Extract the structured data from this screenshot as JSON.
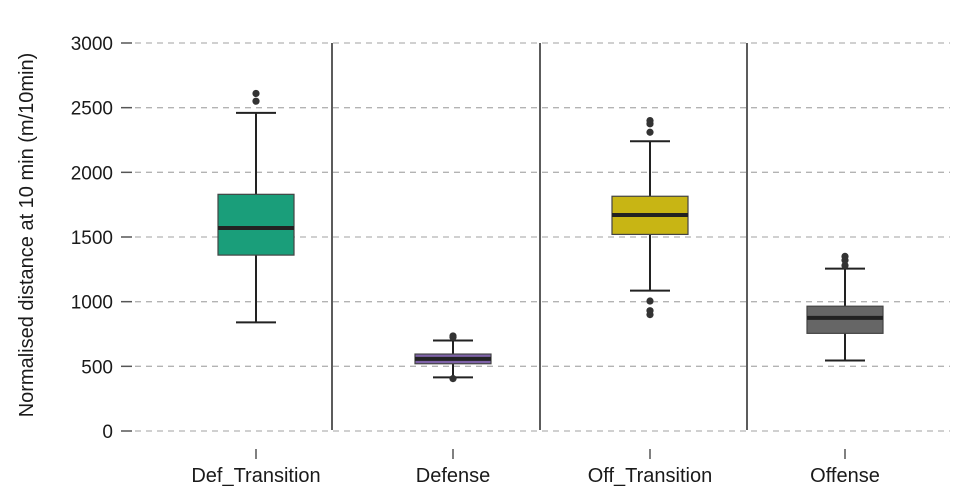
{
  "chart_data": {
    "type": "box",
    "title": "",
    "xlabel": "",
    "ylabel": "Normalised distance at 10 min (m/10min)",
    "ylim": [
      0,
      3000
    ],
    "yticks": [
      0,
      500,
      1000,
      1500,
      2000,
      2500,
      3000
    ],
    "grid": true,
    "categories": [
      "Def_Transition",
      "Defense",
      "Off_Transition",
      "Offense"
    ],
    "series": [
      {
        "category": "Def_Transition",
        "color": "#1a9e7a",
        "whisker_low": 840,
        "q1": 1360,
        "median": 1570,
        "q3": 1830,
        "whisker_high": 2460,
        "outliers": [
          2550,
          2610
        ]
      },
      {
        "category": "Defense",
        "color": "#7e62a8",
        "whisker_low": 415,
        "q1": 520,
        "median": 558,
        "q3": 595,
        "whisker_high": 700,
        "outliers": [
          405,
          725,
          735
        ]
      },
      {
        "category": "Off_Transition",
        "color": "#c8b514",
        "whisker_low": 1085,
        "q1": 1520,
        "median": 1670,
        "q3": 1815,
        "whisker_high": 2240,
        "outliers": [
          900,
          930,
          1005,
          2310,
          2375,
          2400
        ]
      },
      {
        "category": "Offense",
        "color": "#666666",
        "whisker_low": 545,
        "q1": 755,
        "median": 875,
        "q3": 965,
        "whisker_high": 1255,
        "outliers": [
          1280,
          1320,
          1350
        ]
      }
    ]
  }
}
